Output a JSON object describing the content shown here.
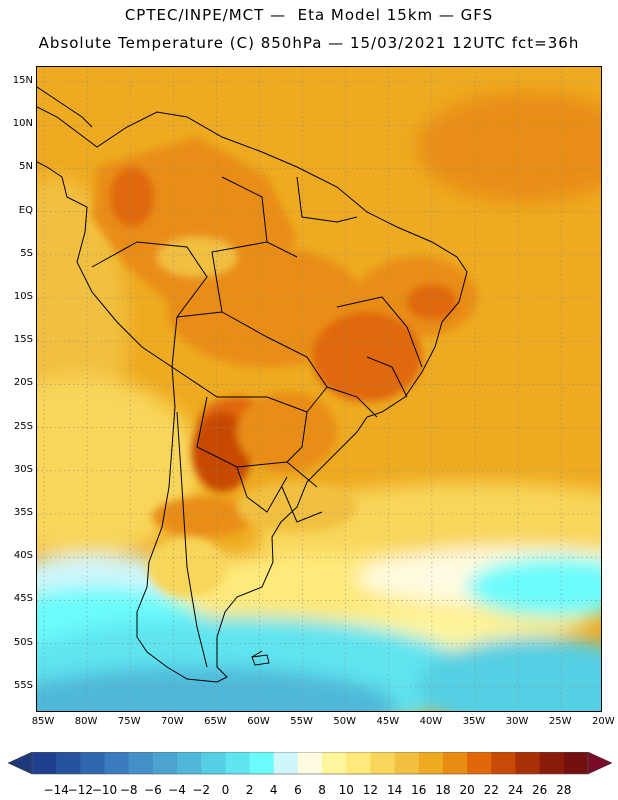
{
  "header": {
    "line1": "CPTEC/INPE/MCT —  Eta Model 15km — GFS",
    "line2": "Absolute Temperature (C) 850hPa — 15/03/2021 12UTC fct=36h"
  },
  "map": {
    "lat_labels": [
      "15N",
      "10N",
      "5N",
      "EQ",
      "5S",
      "10S",
      "15S",
      "20S",
      "25S",
      "30S",
      "35S",
      "40S",
      "45S",
      "50S",
      "55S"
    ],
    "lon_labels": [
      "85W",
      "80W",
      "75W",
      "70W",
      "65W",
      "60W",
      "55W",
      "50W",
      "45W",
      "40W",
      "35W",
      "30W",
      "25W",
      "20W"
    ],
    "gridlines": "dotted"
  },
  "colorbar": {
    "labels": [
      "-14",
      "-12",
      "-10",
      "-8",
      "-6",
      "-4",
      "-2",
      "0",
      "2",
      "4",
      "6",
      "8",
      "10",
      "12",
      "14",
      "16",
      "18",
      "20",
      "22",
      "24",
      "26",
      "28"
    ],
    "colors": [
      "#1f3f8f",
      "#26539e",
      "#2e67ae",
      "#3a7cbd",
      "#4590c6",
      "#4aa4cf",
      "#4fb8d8",
      "#55cfe3",
      "#5fe4f0",
      "#6cfbfb",
      "#cff6fb",
      "#fffbe0",
      "#fff59c",
      "#fee97a",
      "#f8d65a",
      "#f2c040",
      "#eeaa20",
      "#e98d12",
      "#e0680a",
      "#c74a06",
      "#a83006",
      "#8a1b08",
      "#731010"
    ],
    "low_arrow_color": "#1e3a7a",
    "high_arrow_color": "#7a0c2a"
  }
}
